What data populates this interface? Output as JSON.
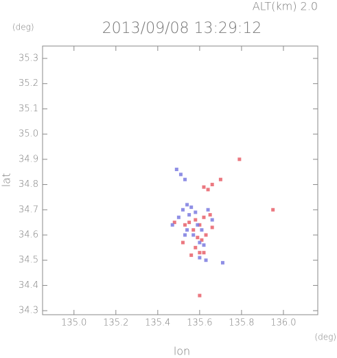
{
  "chart_data": {
    "type": "scatter",
    "title": "2013/09/08 13:29:12",
    "altitude_label": "ALT(km) 2.0",
    "y_unit": "(deg)",
    "x_unit": "(deg)",
    "xlabel": "lon",
    "ylabel": "lat",
    "xlim": [
      134.85,
      136.164
    ],
    "ylim": [
      34.284,
      35.349
    ],
    "xticks": [
      {
        "value": 135,
        "label": "135.0"
      },
      135.2,
      135.4,
      135.6,
      135.8,
      {
        "value": 136,
        "label": "136.0"
      }
    ],
    "yticks": [
      34.3,
      34.4,
      34.5,
      34.6,
      34.7,
      34.8,
      34.9,
      {
        "value": 35,
        "label": "35.0"
      },
      35.1,
      35.2,
      35.3
    ],
    "series": [
      {
        "color": "#e8606a",
        "x": [
          135.62,
          135.64,
          135.66,
          135.58,
          135.6,
          135.62,
          135.55,
          135.57,
          135.63,
          135.61,
          135.58,
          135.6,
          135.65,
          135.52,
          135.48,
          135.95,
          135.79,
          135.6,
          135.56,
          135.66,
          135.53,
          135.59,
          135.62,
          135.7
        ],
        "y": [
          34.79,
          34.78,
          34.8,
          34.66,
          34.64,
          34.67,
          34.65,
          34.62,
          34.6,
          34.58,
          34.55,
          34.53,
          34.68,
          34.57,
          34.65,
          34.7,
          34.9,
          34.36,
          34.52,
          34.63,
          34.64,
          34.59,
          34.53,
          34.82
        ]
      },
      {
        "color": "#7b7be0",
        "x": [
          135.52,
          135.54,
          135.56,
          135.5,
          135.58,
          135.55,
          135.61,
          135.59,
          135.57,
          135.62,
          135.6,
          135.63,
          135.71,
          135.53,
          135.51,
          135.49,
          135.64,
          135.66,
          135.54,
          135.47,
          135.6,
          135.53
        ],
        "y": [
          34.7,
          34.72,
          34.71,
          34.67,
          34.69,
          34.68,
          34.62,
          34.64,
          34.6,
          34.56,
          34.51,
          34.5,
          34.49,
          34.82,
          34.84,
          34.86,
          34.7,
          34.66,
          34.62,
          34.64,
          34.57,
          34.6
        ]
      }
    ]
  }
}
